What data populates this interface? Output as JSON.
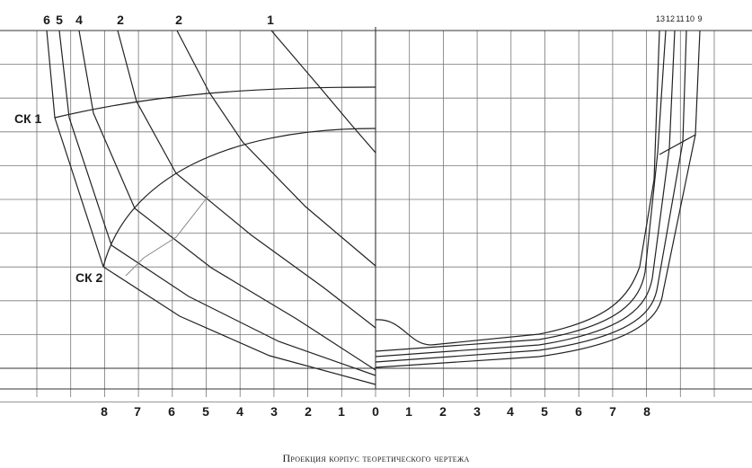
{
  "diagram": {
    "caption": "Проекция корпус теоретического чертежа",
    "left_half_station_labels": [
      "6",
      "5",
      "4",
      "2",
      "2",
      "1"
    ],
    "right_half_station_labels": [
      "13",
      "12",
      "11",
      "10",
      "9"
    ],
    "bottom_scale_left": [
      "8",
      "7",
      "6",
      "5",
      "4",
      "3",
      "2",
      "1",
      "0"
    ],
    "bottom_scale_right": [
      "1",
      "2",
      "3",
      "4",
      "5",
      "6",
      "7",
      "8"
    ],
    "chine_labels": [
      "СК 1",
      "СК 2"
    ]
  }
}
